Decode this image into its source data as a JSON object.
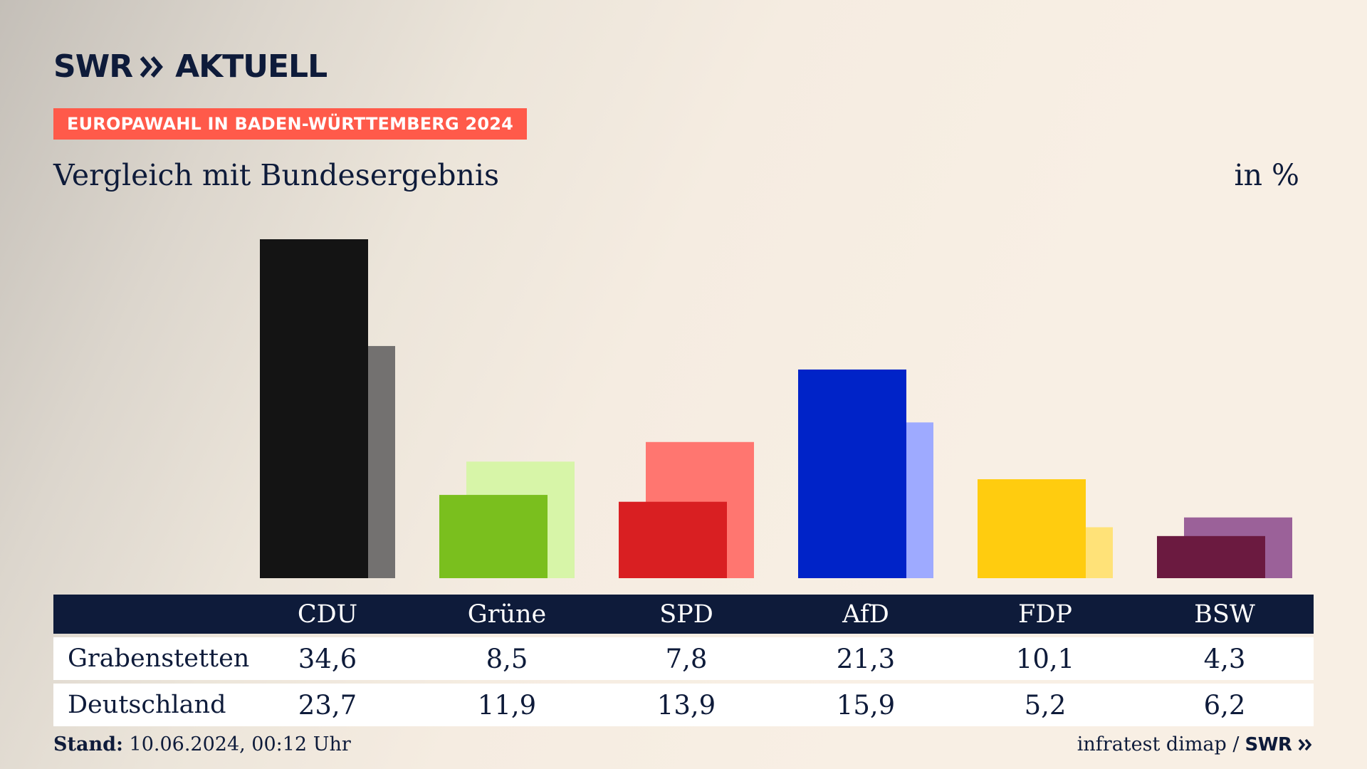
{
  "brand": {
    "logo_text": "SWR",
    "logo_suffix": "AKTUELL",
    "footer_logo": "SWR"
  },
  "header": {
    "badge": "EUROPAWAHL IN BADEN-WÜRTTEMBERG 2024",
    "subtitle": "Vergleich mit Bundesergebnis",
    "unit": "in %"
  },
  "footer": {
    "stand_label": "Stand:",
    "stand_value": "10.06.2024, 00:12 Uhr",
    "source": "infratest dimap /"
  },
  "chart_data": {
    "type": "bar",
    "categories": [
      "CDU",
      "Grüne",
      "SPD",
      "AfD",
      "FDP",
      "BSW"
    ],
    "series": [
      {
        "name": "Grabenstetten",
        "values": [
          34.6,
          8.5,
          7.8,
          21.3,
          10.1,
          4.3
        ],
        "labels": [
          "34,6",
          "8,5",
          "7,8",
          "21,3",
          "10,1",
          "4,3"
        ]
      },
      {
        "name": "Deutschland",
        "values": [
          23.7,
          11.9,
          13.9,
          15.9,
          5.2,
          6.2
        ],
        "labels": [
          "23,7",
          "11,9",
          "13,9",
          "15,9",
          "5,2",
          "6,2"
        ]
      }
    ],
    "colors": {
      "primary": [
        "#141414",
        "#7abf1e",
        "#d91f22",
        "#0023c8",
        "#ffcc0f",
        "#6b1a40"
      ],
      "secondary": [
        "#737170",
        "#d7f5a8",
        "#ff7670",
        "#9eaaff",
        "#ffe278",
        "#9b6199"
      ]
    },
    "ylim": [
      0,
      34.6
    ],
    "grid": false,
    "legend": "table-below"
  }
}
